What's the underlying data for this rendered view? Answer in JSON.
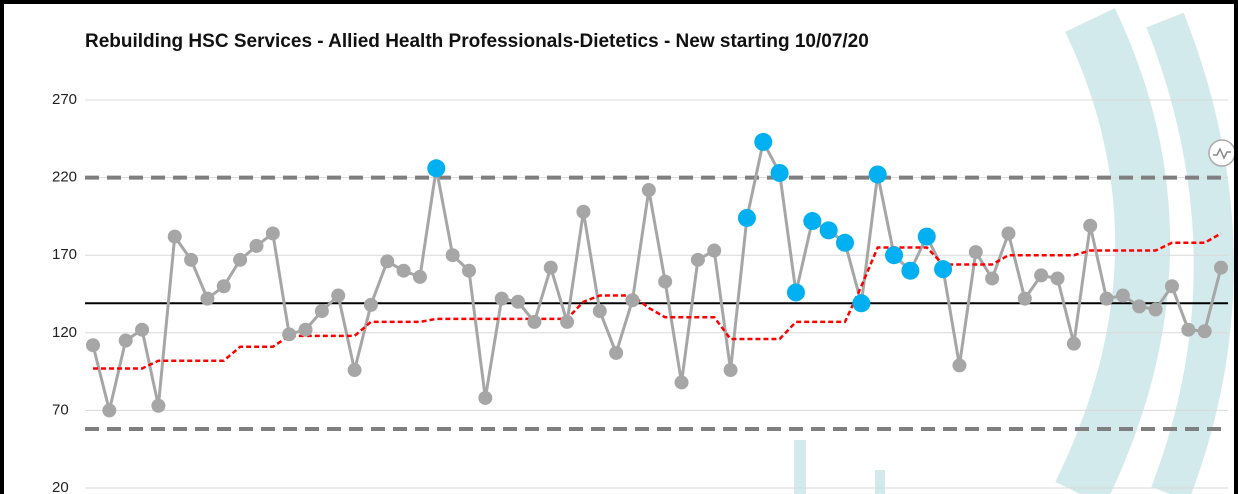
{
  "chart_data": {
    "type": "control",
    "title": "Rebuilding HSC Services - Allied Health Professionals-Dietetics - New starting 10/07/20",
    "ylim": [
      20,
      270
    ],
    "yticks": [
      20,
      70,
      120,
      170,
      220,
      270
    ],
    "grid": true,
    "series": [
      {
        "color": "#a6a6a6",
        "style": "line-markers",
        "values": [
          112,
          70,
          115,
          122,
          73,
          182,
          167,
          142,
          150,
          167,
          176,
          184,
          119,
          122,
          134,
          144,
          96,
          138,
          166,
          160,
          156,
          226,
          170,
          160,
          78,
          142,
          140,
          127,
          162,
          127,
          198,
          134,
          107,
          141,
          212,
          153,
          88,
          167,
          173,
          96,
          194,
          243,
          223,
          146,
          192,
          186,
          178,
          139,
          222,
          170,
          160,
          182,
          161,
          99,
          172,
          155,
          184,
          142,
          157,
          155,
          113,
          189,
          142,
          144,
          137,
          135,
          150,
          122,
          121,
          162
        ],
        "marker_colors": [
          "#a6a6a6",
          "#a6a6a6",
          "#a6a6a6",
          "#a6a6a6",
          "#a6a6a6",
          "#a6a6a6",
          "#a6a6a6",
          "#a6a6a6",
          "#a6a6a6",
          "#a6a6a6",
          "#a6a6a6",
          "#a6a6a6",
          "#a6a6a6",
          "#a6a6a6",
          "#a6a6a6",
          "#a6a6a6",
          "#a6a6a6",
          "#a6a6a6",
          "#a6a6a6",
          "#a6a6a6",
          "#a6a6a6",
          "#00b0f0",
          "#a6a6a6",
          "#a6a6a6",
          "#a6a6a6",
          "#a6a6a6",
          "#a6a6a6",
          "#a6a6a6",
          "#a6a6a6",
          "#a6a6a6",
          "#a6a6a6",
          "#a6a6a6",
          "#a6a6a6",
          "#a6a6a6",
          "#a6a6a6",
          "#a6a6a6",
          "#a6a6a6",
          "#a6a6a6",
          "#a6a6a6",
          "#a6a6a6",
          "#00b0f0",
          "#00b0f0",
          "#00b0f0",
          "#00b0f0",
          "#00b0f0",
          "#00b0f0",
          "#00b0f0",
          "#00b0f0",
          "#00b0f0",
          "#00b0f0",
          "#00b0f0",
          "#00b0f0",
          "#00b0f0",
          "#a6a6a6",
          "#a6a6a6",
          "#a6a6a6",
          "#a6a6a6",
          "#a6a6a6",
          "#a6a6a6",
          "#a6a6a6",
          "#a6a6a6",
          "#a6a6a6",
          "#a6a6a6",
          "#a6a6a6",
          "#a6a6a6",
          "#a6a6a6",
          "#a6a6a6",
          "#a6a6a6",
          "#a6a6a6",
          "#a6a6a6"
        ]
      },
      {
        "color": "#ff0000",
        "style": "dotted",
        "values": [
          97,
          97,
          97,
          97,
          102,
          102,
          102,
          102,
          102,
          111,
          111,
          111,
          118,
          118,
          118,
          118,
          118,
          127,
          127,
          127,
          127,
          129,
          129,
          129,
          129,
          129,
          129,
          129,
          129,
          129,
          140,
          144,
          144,
          144,
          136,
          130,
          130,
          130,
          130,
          116,
          116,
          116,
          116,
          127,
          127,
          127,
          127,
          150,
          175,
          175,
          175,
          175,
          164,
          164,
          164,
          164,
          170,
          170,
          170,
          170,
          170,
          173,
          173,
          173,
          173,
          173,
          178,
          178,
          178,
          184
        ]
      }
    ],
    "reference_lines": [
      {
        "value": 139,
        "color": "#000000",
        "style": "solid"
      },
      {
        "value": 220,
        "color": "#7f7f7f",
        "style": "dashed"
      },
      {
        "value": 58,
        "color": "#7f7f7f",
        "style": "dashed"
      }
    ]
  }
}
